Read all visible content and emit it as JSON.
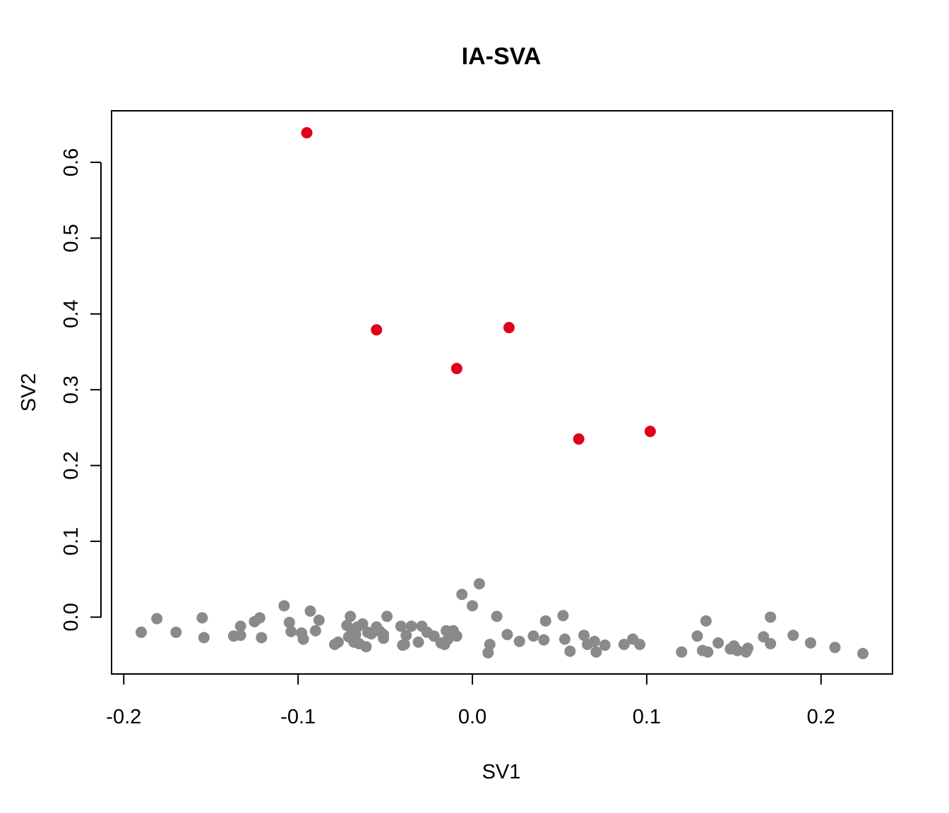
{
  "chart_data": {
    "type": "scatter",
    "title": "IA-SVA",
    "xlabel": "SV1",
    "ylabel": "SV2",
    "xlim": [
      -0.207,
      0.241
    ],
    "ylim": [
      -0.075,
      0.668
    ],
    "x_ticks": [
      -0.2,
      -0.1,
      0.0,
      0.1,
      0.2
    ],
    "x_tick_labels": [
      "-0.2",
      "-0.1",
      "0.0",
      "0.1",
      "0.2"
    ],
    "y_ticks": [
      0.0,
      0.1,
      0.2,
      0.3,
      0.4,
      0.5,
      0.6
    ],
    "y_tick_labels": [
      "0.0",
      "0.1",
      "0.2",
      "0.3",
      "0.4",
      "0.5",
      "0.6"
    ],
    "grid": false,
    "colors": {
      "highlight": "#e0001b",
      "other": "#8a8a8a"
    },
    "series": [
      {
        "color": "#8a8a8a",
        "points": [
          [
            -0.19,
            -0.02
          ],
          [
            -0.181,
            -0.002
          ],
          [
            -0.17,
            -0.02
          ],
          [
            -0.155,
            -0.001
          ],
          [
            -0.154,
            -0.027
          ],
          [
            -0.137,
            -0.025
          ],
          [
            -0.133,
            -0.024
          ],
          [
            -0.133,
            -0.012
          ],
          [
            -0.125,
            -0.006
          ],
          [
            -0.122,
            -0.001
          ],
          [
            -0.121,
            -0.027
          ],
          [
            -0.108,
            0.015
          ],
          [
            -0.105,
            -0.007
          ],
          [
            -0.104,
            -0.019
          ],
          [
            -0.098,
            -0.021
          ],
          [
            -0.097,
            -0.029
          ],
          [
            -0.093,
            0.008
          ],
          [
            -0.09,
            -0.018
          ],
          [
            -0.088,
            -0.004
          ],
          [
            -0.079,
            -0.036
          ],
          [
            -0.077,
            -0.033
          ],
          [
            -0.072,
            -0.011
          ],
          [
            -0.071,
            -0.026
          ],
          [
            -0.07,
            0.001
          ],
          [
            -0.069,
            -0.018
          ],
          [
            -0.068,
            -0.033
          ],
          [
            -0.067,
            -0.023
          ],
          [
            -0.066,
            -0.013
          ],
          [
            -0.065,
            -0.035
          ],
          [
            -0.063,
            -0.009
          ],
          [
            -0.061,
            -0.039
          ],
          [
            -0.06,
            -0.02
          ],
          [
            -0.058,
            -0.022
          ],
          [
            -0.055,
            -0.013
          ],
          [
            -0.053,
            -0.019
          ],
          [
            -0.051,
            -0.023
          ],
          [
            -0.051,
            -0.028
          ],
          [
            -0.049,
            0.001
          ],
          [
            -0.041,
            -0.012
          ],
          [
            -0.04,
            -0.037
          ],
          [
            -0.039,
            -0.036
          ],
          [
            -0.038,
            -0.024
          ],
          [
            -0.035,
            -0.012
          ],
          [
            -0.031,
            -0.033
          ],
          [
            -0.029,
            -0.012
          ],
          [
            -0.026,
            -0.02
          ],
          [
            -0.022,
            -0.025
          ],
          [
            -0.018,
            -0.034
          ],
          [
            -0.016,
            -0.036
          ],
          [
            -0.015,
            -0.018
          ],
          [
            -0.014,
            -0.029
          ],
          [
            -0.011,
            -0.018
          ],
          [
            -0.009,
            -0.025
          ],
          [
            -0.006,
            0.03
          ],
          [
            0.0,
            0.015
          ],
          [
            0.004,
            0.044
          ],
          [
            0.009,
            -0.047
          ],
          [
            0.01,
            -0.036
          ],
          [
            0.014,
            0.001
          ],
          [
            0.02,
            -0.023
          ],
          [
            0.027,
            -0.032
          ],
          [
            0.035,
            -0.025
          ],
          [
            0.041,
            -0.03
          ],
          [
            0.042,
            -0.005
          ],
          [
            0.052,
            0.002
          ],
          [
            0.053,
            -0.029
          ],
          [
            0.056,
            -0.045
          ],
          [
            0.064,
            -0.024
          ],
          [
            0.066,
            -0.036
          ],
          [
            0.07,
            -0.032
          ],
          [
            0.071,
            -0.046
          ],
          [
            0.076,
            -0.037
          ],
          [
            0.087,
            -0.036
          ],
          [
            0.092,
            -0.029
          ],
          [
            0.096,
            -0.036
          ],
          [
            0.12,
            -0.046
          ],
          [
            0.129,
            -0.025
          ],
          [
            0.132,
            -0.044
          ],
          [
            0.134,
            -0.005
          ],
          [
            0.135,
            -0.046
          ],
          [
            0.141,
            -0.034
          ],
          [
            0.148,
            -0.042
          ],
          [
            0.15,
            -0.038
          ],
          [
            0.152,
            -0.044
          ],
          [
            0.157,
            -0.046
          ],
          [
            0.158,
            -0.041
          ],
          [
            0.167,
            -0.026
          ],
          [
            0.171,
            0.0
          ],
          [
            0.171,
            -0.035
          ],
          [
            0.184,
            -0.024
          ],
          [
            0.194,
            -0.034
          ],
          [
            0.208,
            -0.04
          ],
          [
            0.224,
            -0.048
          ]
        ]
      },
      {
        "color": "#e0001b",
        "points": [
          [
            -0.095,
            0.639
          ],
          [
            -0.055,
            0.379
          ],
          [
            -0.009,
            0.328
          ],
          [
            0.021,
            0.382
          ],
          [
            0.061,
            0.235
          ],
          [
            0.102,
            0.245
          ]
        ]
      }
    ]
  }
}
